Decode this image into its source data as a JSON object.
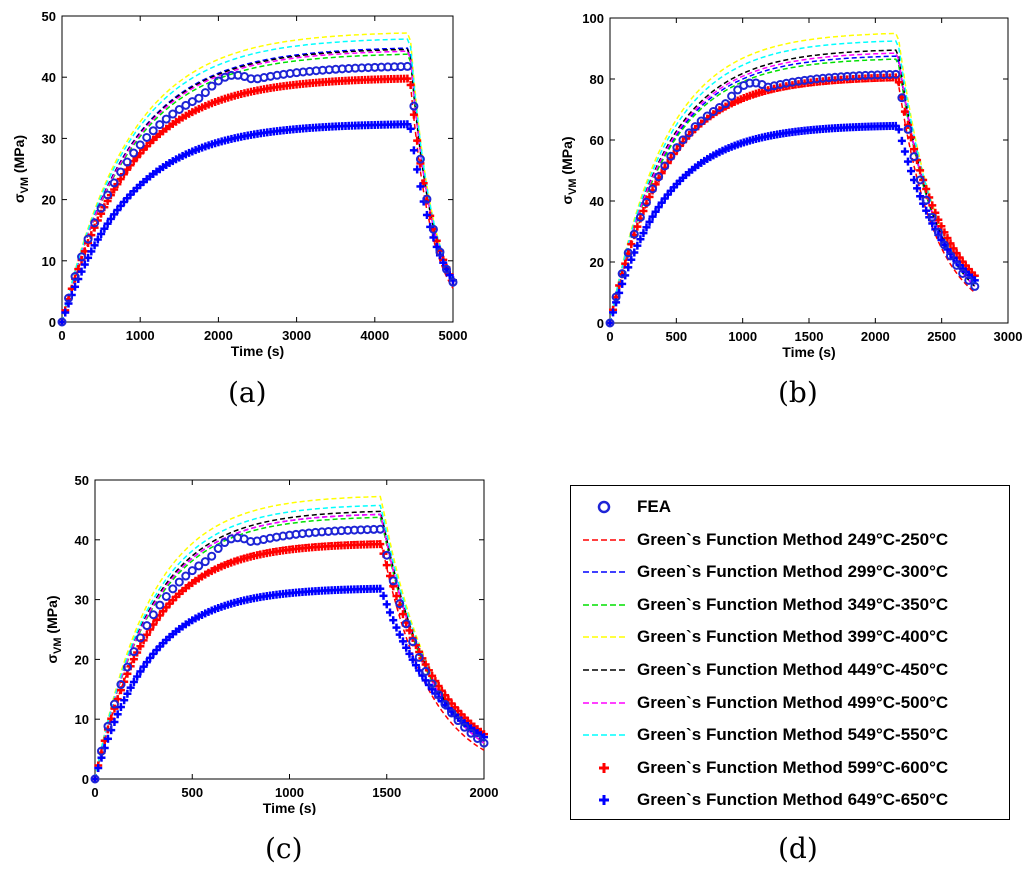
{
  "panel_labels": [
    "(a)",
    "(b)",
    "(c)",
    "(d)"
  ],
  "legend": {
    "entries": [
      {
        "label": "FEA",
        "color": "#1e24d6",
        "style": "circle"
      },
      {
        "label": "Green`s Function Method 249°C-250°C",
        "color": "#ff0000",
        "style": "dashed"
      },
      {
        "label": "Green`s Function Method 299°C-300°C",
        "color": "#0000ff",
        "style": "dashed"
      },
      {
        "label": "Green`s Function Method 349°C-350°C",
        "color": "#00e000",
        "style": "dashed"
      },
      {
        "label": "Green`s Function Method 399°C-400°C",
        "color": "#ffff00",
        "style": "dashed"
      },
      {
        "label": "Green`s Function Method 449°C-450°C",
        "color": "#000000",
        "style": "dashed"
      },
      {
        "label": "Green`s Function Method 499°C-500°C",
        "color": "#ff00ff",
        "style": "dashed"
      },
      {
        "label": "Green`s Function Method 549°C-550°C",
        "color": "#00ffff",
        "style": "dashed"
      },
      {
        "label": "Green`s Function Method 599°C-600°C",
        "color": "#ff0000",
        "style": "plus"
      },
      {
        "label": "Green`s Function Method 649°C-650°C",
        "color": "#0000ff",
        "style": "plus"
      }
    ]
  },
  "chart_data": [
    {
      "type": "line",
      "panel": "(a)",
      "xlabel": "Time (s)",
      "ylabel": "σVM (MPa)",
      "xlim": [
        0,
        5000
      ],
      "ylim": [
        0,
        50
      ],
      "xticks": [
        0,
        1000,
        2000,
        3000,
        4000,
        5000
      ],
      "yticks": [
        0,
        10,
        20,
        30,
        40,
        50
      ],
      "t_hold_end": 4450,
      "t_end": 5000,
      "series": [
        {
          "name": "Green`s Function Method 249°C-250°C",
          "peak": 40.0,
          "final": 5.5
        },
        {
          "name": "Green`s Function Method 299°C-300°C",
          "peak": 45.0,
          "final": 6.5
        },
        {
          "name": "Green`s Function Method 349°C-350°C",
          "peak": 44.0,
          "final": 6.5
        },
        {
          "name": "Green`s Function Method 399°C-400°C",
          "peak": 47.5,
          "final": 7.0
        },
        {
          "name": "Green`s Function Method 449°C-450°C",
          "peak": 44.8,
          "final": 6.5
        },
        {
          "name": "Green`s Function Method 499°C-500°C",
          "peak": 44.5,
          "final": 6.5
        },
        {
          "name": "Green`s Function Method 549°C-550°C",
          "peak": 46.5,
          "final": 7.0
        },
        {
          "name": "Green`s Function Method 599°C-600°C",
          "peak": 40.0,
          "final": 6.8
        },
        {
          "name": "Green`s Function Method 649°C-650°C",
          "peak": 32.5,
          "final": 6.8
        },
        {
          "name": "FEA",
          "peak": 42.0,
          "final": 6.5
        }
      ]
    },
    {
      "type": "line",
      "panel": "(b)",
      "xlabel": "Time (s)",
      "ylabel": "σVM (MPa)",
      "xlim": [
        0,
        3000
      ],
      "ylim": [
        0,
        100
      ],
      "xticks": [
        0,
        500,
        1000,
        1500,
        2000,
        2500,
        3000
      ],
      "yticks": [
        0,
        20,
        40,
        60,
        80,
        100
      ],
      "t_hold_end": 2170,
      "t_end": 2750,
      "series": [
        {
          "name": "Green`s Function Method 249°C-250°C",
          "peak": 80.0,
          "final": 10.0
        },
        {
          "name": "Green`s Function Method 299°C-300°C",
          "peak": 88.0,
          "final": 12.0
        },
        {
          "name": "Green`s Function Method 349°C-350°C",
          "peak": 87.0,
          "final": 12.0
        },
        {
          "name": "Green`s Function Method 399°C-400°C",
          "peak": 95.5,
          "final": 13.0
        },
        {
          "name": "Green`s Function Method 449°C-450°C",
          "peak": 90.0,
          "final": 12.0
        },
        {
          "name": "Green`s Function Method 499°C-500°C",
          "peak": 89.0,
          "final": 12.0
        },
        {
          "name": "Green`s Function Method 549°C-550°C",
          "peak": 93.0,
          "final": 13.0
        },
        {
          "name": "Green`s Function Method 599°C-600°C",
          "peak": 81.0,
          "final": 15.5
        },
        {
          "name": "Green`s Function Method 649°C-650°C",
          "peak": 65.0,
          "final": 14.0
        },
        {
          "name": "FEA",
          "peak": 82.0,
          "final": 12.0
        }
      ]
    },
    {
      "type": "line",
      "panel": "(c)",
      "xlabel": "Time (s)",
      "ylabel": "σVM (MPa)",
      "xlim": [
        0,
        2000
      ],
      "ylim": [
        0,
        50
      ],
      "xticks": [
        0,
        500,
        1000,
        1500,
        2000
      ],
      "yticks": [
        0,
        10,
        20,
        30,
        40,
        50
      ],
      "t_hold_end": 1470,
      "t_end": 2000,
      "series": [
        {
          "name": "Green`s Function Method 249°C-250°C",
          "peak": 40.0,
          "final": 4.8
        },
        {
          "name": "Green`s Function Method 299°C-300°C",
          "peak": 44.5,
          "final": 6.0
        },
        {
          "name": "Green`s Function Method 349°C-350°C",
          "peak": 44.0,
          "final": 6.0
        },
        {
          "name": "Green`s Function Method 399°C-400°C",
          "peak": 47.5,
          "final": 6.5
        },
        {
          "name": "Green`s Function Method 449°C-450°C",
          "peak": 45.0,
          "final": 6.2
        },
        {
          "name": "Green`s Function Method 499°C-500°C",
          "peak": 44.5,
          "final": 6.0
        },
        {
          "name": "Green`s Function Method 549°C-550°C",
          "peak": 46.0,
          "final": 6.5
        },
        {
          "name": "Green`s Function Method 599°C-600°C",
          "peak": 39.5,
          "final": 7.5
        },
        {
          "name": "Green`s Function Method 649°C-650°C",
          "peak": 32.0,
          "final": 7.0
        },
        {
          "name": "FEA",
          "peak": 42.0,
          "final": 6.0
        }
      ]
    }
  ]
}
